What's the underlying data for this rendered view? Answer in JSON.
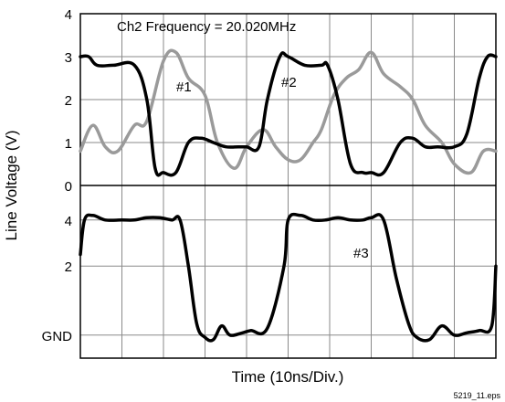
{
  "chart_data": [
    {
      "type": "line",
      "annotation": "Ch2 Frequency = 20.020MHz",
      "ylabel": "Line Voltage (V)",
      "ylim": [
        0,
        4
      ],
      "yticks": [
        "0",
        "1",
        "2",
        "3",
        "4"
      ],
      "x_divisions": 10,
      "grid": true,
      "series": [
        {
          "name": "#1",
          "color": "#9a9a9a",
          "x": [
            0,
            0.3,
            0.6,
            0.9,
            1.3,
            1.6,
            2.0,
            2.3,
            2.6,
            3.0,
            3.3,
            3.7,
            4.0,
            4.4,
            4.7,
            5.0,
            5.3,
            5.6,
            5.8,
            6.1,
            6.4,
            6.7,
            7.0,
            7.3,
            7.7,
            8.0,
            8.3,
            8.7,
            9.0,
            9.4,
            9.7,
            10
          ],
          "values": [
            0.8,
            1.4,
            0.9,
            0.8,
            1.4,
            1.5,
            2.9,
            3.1,
            2.5,
            2.1,
            1.0,
            0.4,
            0.9,
            1.3,
            0.9,
            0.6,
            0.6,
            1.0,
            1.3,
            2.1,
            2.5,
            2.7,
            3.1,
            2.6,
            2.3,
            2.0,
            1.4,
            1.0,
            0.5,
            0.3,
            0.8,
            0.8
          ]
        },
        {
          "name": "#2",
          "color": "#000000",
          "x": [
            0,
            0.2,
            0.4,
            0.8,
            1.3,
            1.6,
            1.8,
            2.0,
            2.3,
            2.6,
            2.9,
            3.2,
            3.5,
            3.8,
            4.0,
            4.3,
            4.5,
            4.8,
            5.0,
            5.4,
            5.8,
            5.95,
            6.2,
            6.5,
            6.8,
            7.0,
            7.3,
            7.7,
            8.0,
            8.3,
            8.6,
            9.0,
            9.3,
            9.6,
            9.8,
            10
          ],
          "values": [
            3.0,
            3.0,
            2.8,
            2.8,
            2.8,
            2.0,
            0.4,
            0.3,
            0.3,
            1.0,
            1.1,
            1.0,
            0.9,
            0.9,
            0.9,
            0.9,
            2.0,
            3.0,
            3.0,
            2.8,
            2.8,
            2.8,
            2.0,
            0.5,
            0.3,
            0.3,
            0.3,
            1.0,
            1.1,
            0.9,
            0.9,
            0.9,
            1.2,
            2.5,
            3.0,
            3.0
          ]
        }
      ],
      "labels": [
        "#1",
        "#2"
      ]
    },
    {
      "type": "line",
      "yticks": [
        "GND",
        "2",
        "4"
      ],
      "ylim": [
        -2,
        5.5
      ],
      "x_divisions": 10,
      "grid": true,
      "series": [
        {
          "name": "#3",
          "color": "#000000",
          "x": [
            0,
            0.1,
            0.3,
            0.6,
            1.0,
            1.3,
            1.6,
            1.9,
            2.2,
            2.4,
            2.6,
            2.8,
            3.0,
            3.2,
            3.4,
            3.6,
            3.9,
            4.1,
            4.5,
            4.9,
            5.0,
            5.3,
            5.6,
            5.9,
            6.2,
            6.5,
            6.8,
            7.0,
            7.3,
            7.6,
            7.9,
            8.1,
            8.4,
            8.7,
            9.0,
            9.3,
            9.6,
            9.9,
            10
          ],
          "values": [
            2.5,
            4.0,
            4.2,
            4.0,
            4.0,
            4.0,
            4.1,
            4.1,
            4.0,
            4.0,
            2.0,
            -0.5,
            -1.1,
            -1.2,
            -0.6,
            -1.0,
            -0.9,
            -0.8,
            -0.7,
            2.0,
            4.0,
            4.2,
            4.0,
            4.0,
            4.1,
            4.0,
            4.0,
            4.1,
            4.0,
            1.5,
            -0.5,
            -1.1,
            -1.2,
            -0.6,
            -1.0,
            -0.9,
            -0.8,
            -0.6,
            2.0
          ]
        }
      ],
      "labels": [
        "#3"
      ]
    }
  ],
  "xlabel": "Time (10ns/Div.)",
  "figure_id": "5219_11.eps"
}
